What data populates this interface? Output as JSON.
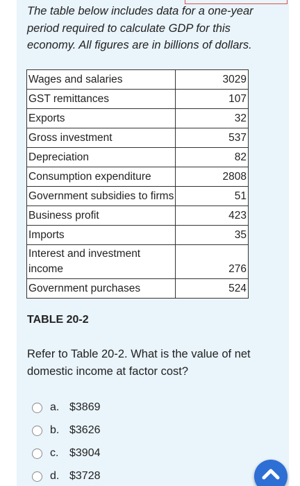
{
  "intro_text": "The table below includes data for a one-year period required to calculate GDP for this economy. All figures are in billions of dollars.",
  "table": {
    "caption": "TABLE 20-2",
    "rows": [
      {
        "label": "Wages and salaries",
        "value": "3029"
      },
      {
        "label": "GST remittances",
        "value": "107"
      },
      {
        "label": "Exports",
        "value": "32"
      },
      {
        "label": "Gross investment",
        "value": "537"
      },
      {
        "label": "Depreciation",
        "value": "82"
      },
      {
        "label": "Consumption expenditure",
        "value": "2808"
      },
      {
        "label": "Government subsidies to firms",
        "value": "51"
      },
      {
        "label": "Business profit",
        "value": "423"
      },
      {
        "label": "Imports",
        "value": "35"
      },
      {
        "label": "Interest and investment income",
        "value": "276"
      },
      {
        "label": "Government purchases",
        "value": "524"
      }
    ]
  },
  "question": {
    "text": "Refer to Table 20-2. What is the value of net domestic income at factor cost?",
    "options": [
      {
        "letter": "a.",
        "text": "$3869"
      },
      {
        "letter": "b.",
        "text": "$3626"
      },
      {
        "letter": "c.",
        "text": "$3904"
      },
      {
        "letter": "d.",
        "text": "$3728"
      }
    ]
  },
  "icons": {
    "scroll_top": "chevron-up-icon",
    "radio": "radio-button"
  },
  "colors": {
    "card_background": "#e9f4fb",
    "scroll_button": "#2d6fd4",
    "top_edge_border": "#d9534f"
  }
}
